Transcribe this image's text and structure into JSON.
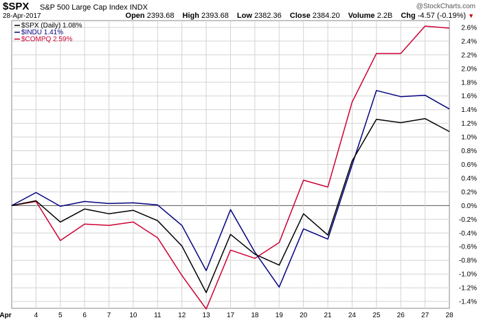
{
  "header": {
    "symbol": "$SPX",
    "name": "S&P 500 Large Cap Index",
    "exchange": "INDX",
    "date": "28-Apr-2017",
    "brand": "@StockCharts.com",
    "open_label": "Open",
    "open": "2393.68",
    "high_label": "High",
    "high": "2393.68",
    "low_label": "Low",
    "low": "2382.36",
    "close_label": "Close",
    "close": "2384.20",
    "volume_label": "Volume",
    "volume": "2.2B",
    "chg_label": "Chg",
    "chg": "-4.57 (-0.19%)"
  },
  "chart_data": {
    "type": "line",
    "x": [
      "Apr",
      "4",
      "5",
      "6",
      "7",
      "10",
      "11",
      "12",
      "13",
      "17",
      "18",
      "19",
      "20",
      "21",
      "24",
      "25",
      "26",
      "27",
      "28"
    ],
    "ylim": [
      -1.5,
      2.7
    ],
    "yticks": [
      "2.6%",
      "2.4%",
      "2.2%",
      "2.0%",
      "1.8%",
      "1.6%",
      "1.4%",
      "1.2%",
      "1.0%",
      "0.8%",
      "0.6%",
      "0.4%",
      "0.2%",
      "0.0%",
      "-0.2%",
      "-0.4%",
      "-0.6%",
      "-0.8%",
      "-1.0%",
      "-1.2%",
      "-1.4%"
    ],
    "ytick_values": [
      2.6,
      2.4,
      2.2,
      2.0,
      1.8,
      1.6,
      1.4,
      1.2,
      1.0,
      0.8,
      0.6,
      0.4,
      0.2,
      0.0,
      -0.2,
      -0.4,
      -0.6,
      -0.8,
      -1.0,
      -1.2,
      -1.4
    ],
    "grid": true,
    "legend_position": "top-left",
    "series": [
      {
        "name": "$SPX (Daily) 1.08%",
        "color": "#000000",
        "values": [
          0.0,
          0.07,
          -0.24,
          -0.05,
          -0.12,
          -0.07,
          -0.22,
          -0.59,
          -1.27,
          -0.42,
          -0.71,
          -0.87,
          -0.12,
          -0.43,
          0.65,
          1.26,
          1.21,
          1.27,
          1.08
        ]
      },
      {
        "name": "$INDU 1.41%",
        "color": "#000080",
        "values": [
          0.0,
          0.19,
          -0.01,
          0.06,
          0.03,
          0.04,
          0.01,
          -0.29,
          -0.95,
          -0.06,
          -0.68,
          -1.19,
          -0.34,
          -0.49,
          0.59,
          1.68,
          1.59,
          1.61,
          1.41
        ]
      },
      {
        "name": "$COMPQ 2.59%",
        "color": "#cc0033",
        "values": [
          0.0,
          0.06,
          -0.51,
          -0.27,
          -0.29,
          -0.24,
          -0.47,
          -1.02,
          -1.51,
          -0.65,
          -0.77,
          -0.54,
          0.37,
          0.27,
          1.51,
          2.22,
          2.22,
          2.62,
          2.59
        ]
      }
    ]
  }
}
